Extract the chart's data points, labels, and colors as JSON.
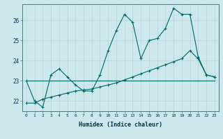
{
  "xlabel": "Humidex (Indice chaleur)",
  "bg_color": "#cde8ea",
  "grid_color": "#b8d4d6",
  "line_color": "#006868",
  "x": [
    0,
    1,
    2,
    3,
    4,
    5,
    6,
    7,
    8,
    9,
    10,
    11,
    12,
    13,
    14,
    15,
    16,
    17,
    18,
    19,
    20,
    21,
    22,
    23
  ],
  "y_jagged": [
    23.0,
    22.0,
    21.7,
    23.3,
    23.6,
    23.2,
    22.8,
    22.5,
    22.5,
    23.3,
    24.5,
    25.5,
    26.3,
    25.9,
    24.1,
    25.0,
    25.1,
    25.6,
    26.6,
    26.3,
    26.3,
    24.2,
    23.3,
    23.2
  ],
  "y_horiz": [
    23.0,
    23.0,
    23.0,
    23.0,
    23.0,
    23.0,
    23.0,
    23.0,
    23.0,
    23.0,
    23.0,
    23.0,
    23.0,
    23.0,
    23.0,
    23.0,
    23.0,
    23.0,
    23.0,
    23.0,
    23.0,
    23.0,
    23.0,
    23.0
  ],
  "y_rising": [
    21.9,
    21.9,
    22.1,
    22.2,
    22.3,
    22.4,
    22.5,
    22.55,
    22.6,
    22.7,
    22.8,
    22.9,
    23.05,
    23.2,
    23.35,
    23.5,
    23.65,
    23.8,
    23.95,
    24.1,
    24.5,
    24.1,
    23.3,
    23.2
  ],
  "ylim": [
    21.5,
    26.8
  ],
  "yticks": [
    22,
    23,
    24,
    25,
    26
  ],
  "xticks": [
    0,
    1,
    2,
    3,
    4,
    5,
    6,
    7,
    8,
    9,
    10,
    11,
    12,
    13,
    14,
    15,
    16,
    17,
    18,
    19,
    20,
    21,
    22,
    23
  ]
}
